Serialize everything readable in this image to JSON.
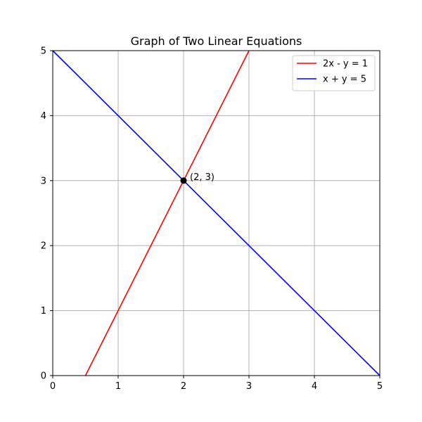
{
  "chart_data": {
    "type": "line",
    "title": "Graph of Two Linear Equations",
    "xlabel": "",
    "ylabel": "",
    "xlim": [
      0,
      5
    ],
    "ylim": [
      0,
      5
    ],
    "grid": true,
    "legend_position": "top-right",
    "x_ticks": [
      0,
      1,
      2,
      3,
      4,
      5
    ],
    "y_ticks": [
      0,
      1,
      2,
      3,
      4,
      5
    ],
    "x_tick_labels": [
      "0",
      "1",
      "2",
      "3",
      "4",
      "5"
    ],
    "y_tick_labels": [
      "0",
      "1",
      "2",
      "3",
      "4",
      "5"
    ],
    "series": [
      {
        "name": "2x - y = 1",
        "color": "#ff0000",
        "x": [
          0.5,
          3
        ],
        "y": [
          0,
          5
        ]
      },
      {
        "name": "x + y = 5",
        "color": "#0000ff",
        "x": [
          0,
          5
        ],
        "y": [
          5,
          0
        ]
      }
    ],
    "points": [
      {
        "label": "(2, 3)",
        "x": 2,
        "y": 3,
        "color": "#000000"
      }
    ]
  }
}
